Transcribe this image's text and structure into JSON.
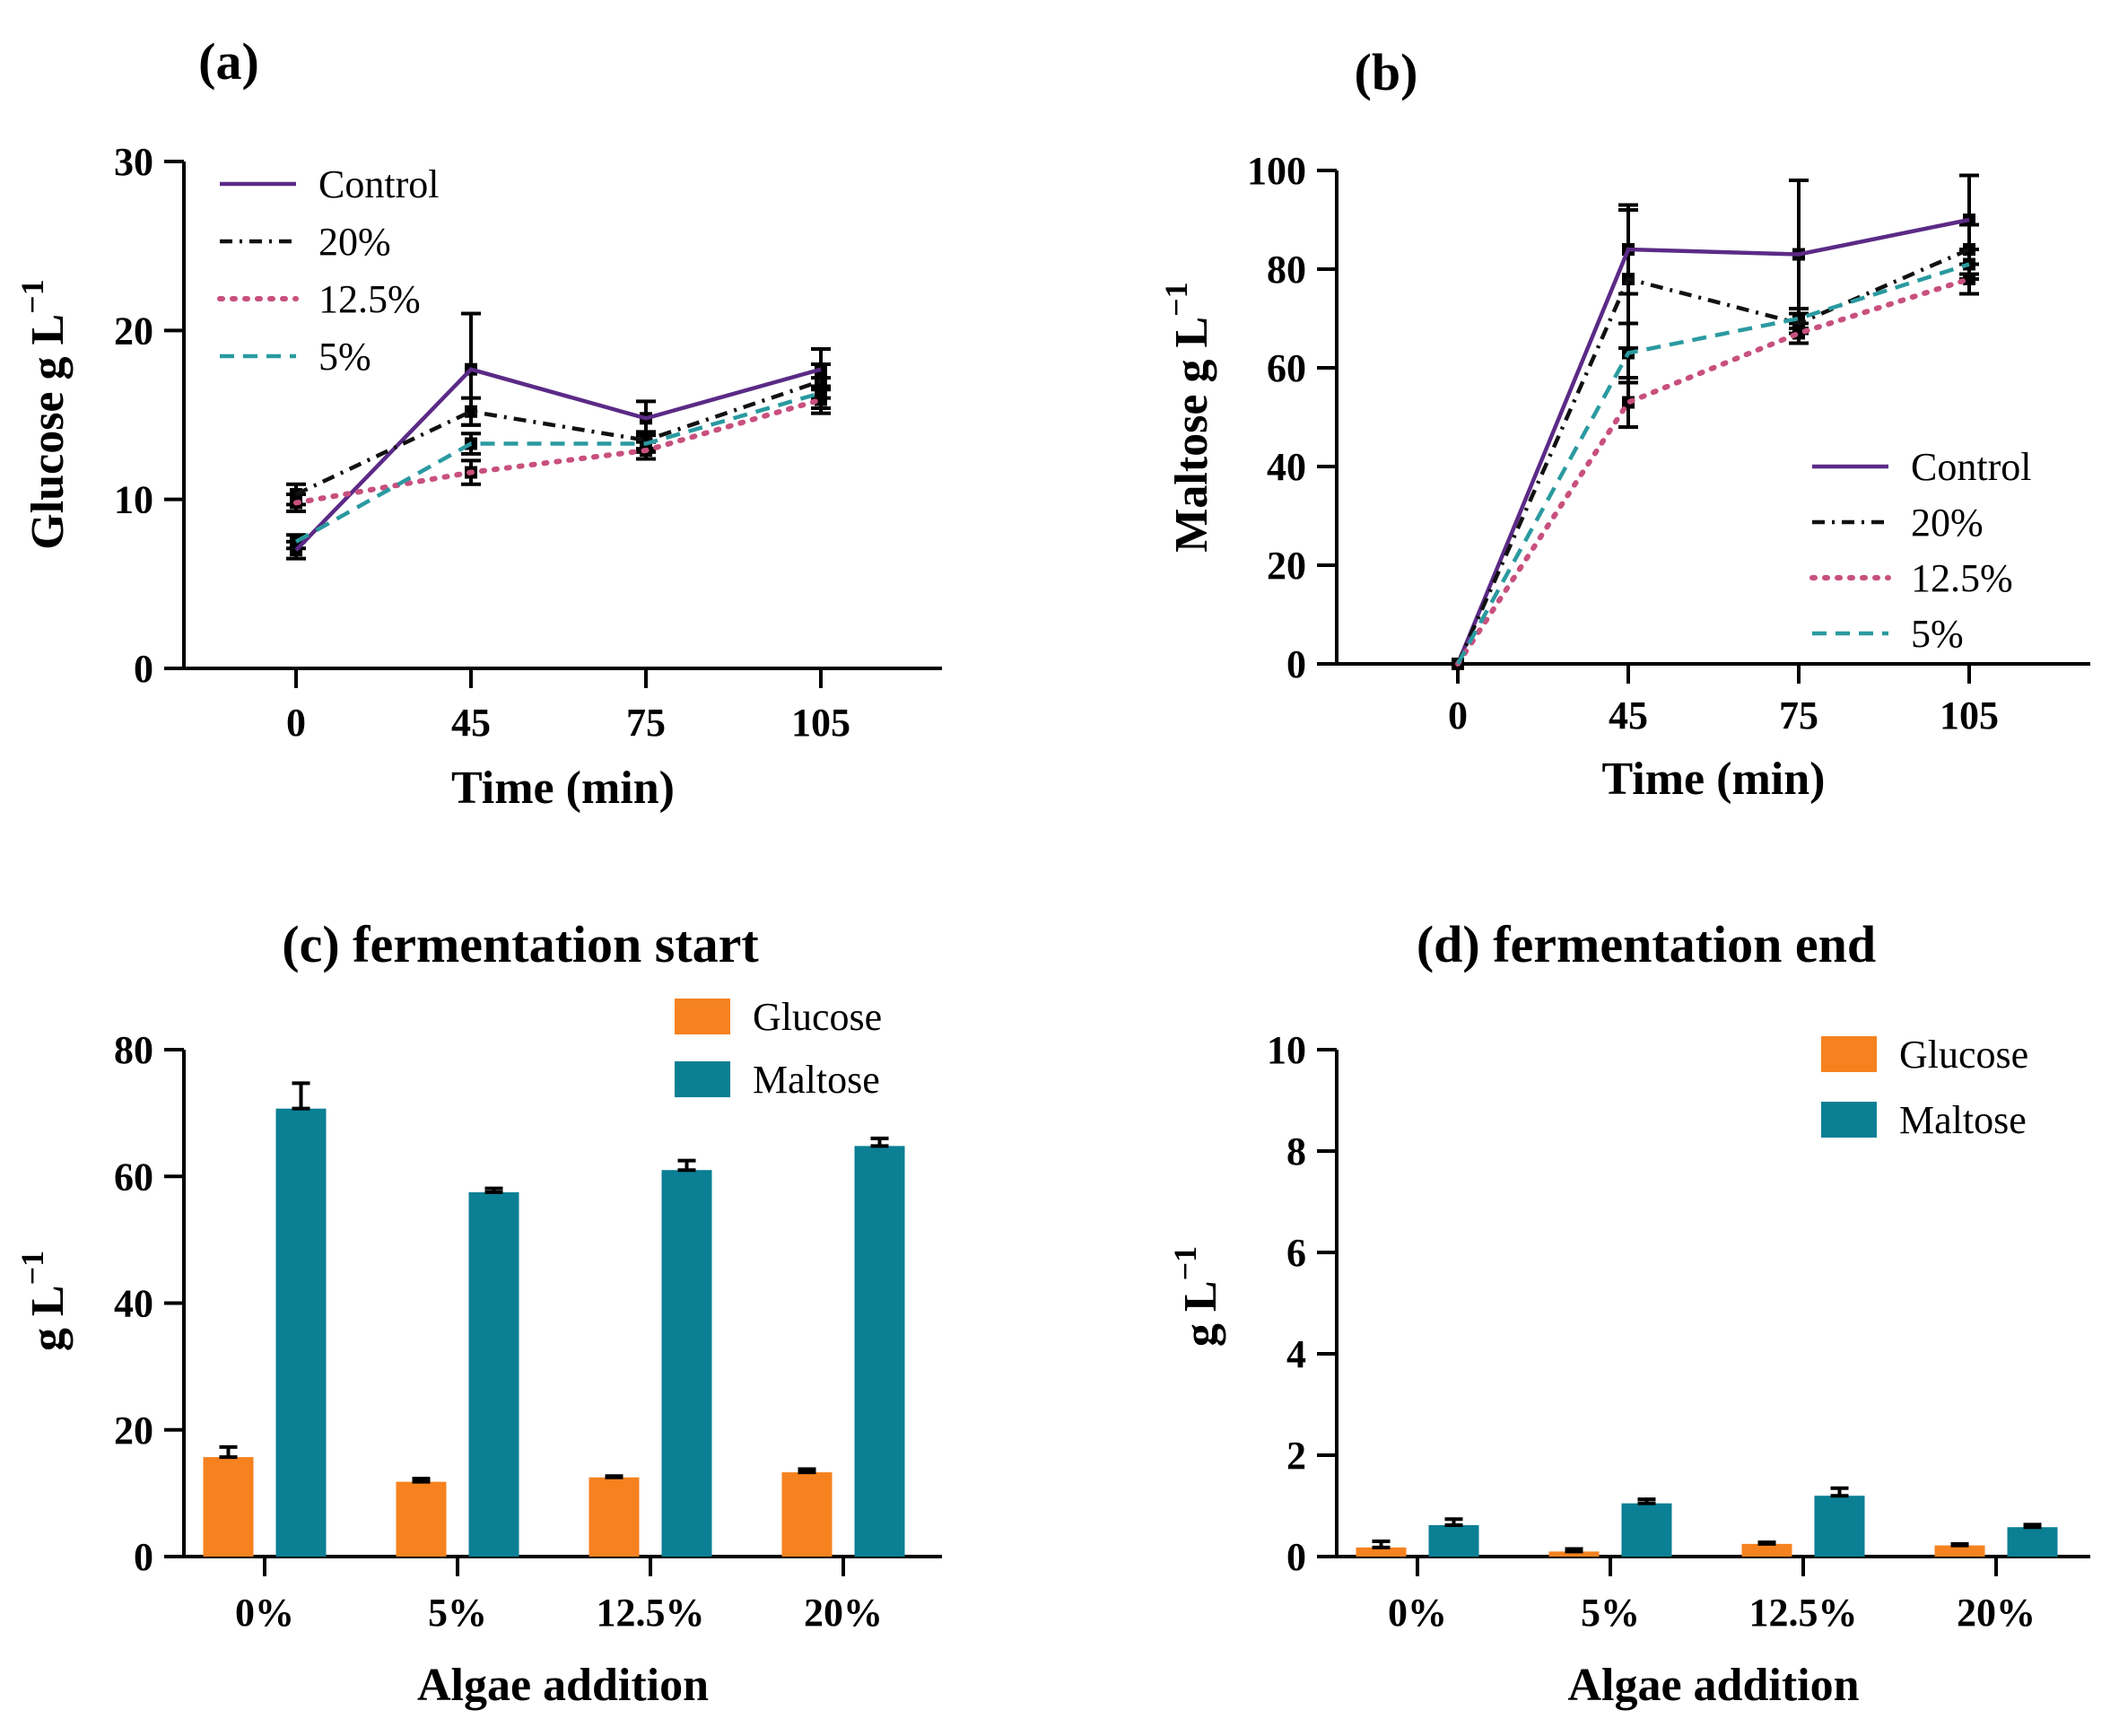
{
  "figure": {
    "panels": [
      {
        "id": "a",
        "title": "(a)"
      },
      {
        "id": "b",
        "title": "(b)"
      },
      {
        "id": "c",
        "title": "(c) fermentation start"
      },
      {
        "id": "d",
        "title": "(d) fermentation end"
      }
    ]
  },
  "colors": {
    "control": "#5b2a86",
    "p20": "#111111",
    "p12_5": "#c8507e",
    "p5": "#2a9aa0",
    "glucose": "#f5821f",
    "maltose": "#0b7f94",
    "axis": "#000000"
  },
  "chart_data": [
    {
      "id": "a",
      "type": "line",
      "title": "(a)",
      "xlabel": "Time (min)",
      "ylabel": "Glucose g L",
      "ylabel_sup": "−1",
      "categories": [
        "0",
        "45",
        "75",
        "105"
      ],
      "ylim": [
        0,
        30
      ],
      "yticks": [
        "0",
        "10",
        "20",
        "30"
      ],
      "legend_position": "top-left",
      "series": [
        {
          "name": "Control",
          "key": "control",
          "style": "solid",
          "values": [
            7.0,
            17.7,
            14.8,
            17.7
          ],
          "errors": [
            0.5,
            3.3,
            1.0,
            1.2
          ]
        },
        {
          "name": "20%",
          "key": "p20",
          "style": "dashdot",
          "values": [
            10.3,
            15.2,
            13.5,
            17.0
          ],
          "errors": [
            0.6,
            0.8,
            0.5,
            1.0
          ]
        },
        {
          "name": "12.5%",
          "key": "p12_5",
          "style": "dotted",
          "values": [
            9.8,
            11.6,
            12.9,
            15.9
          ],
          "errors": [
            0.5,
            0.7,
            0.5,
            0.8
          ]
        },
        {
          "name": "5%",
          "key": "p5",
          "style": "dashed",
          "values": [
            7.5,
            13.3,
            13.3,
            16.3
          ],
          "errors": [
            0.4,
            0.6,
            0.5,
            0.9
          ]
        }
      ]
    },
    {
      "id": "b",
      "type": "line",
      "title": "(b)",
      "xlabel": "Time (min)",
      "ylabel": "Maltose g L",
      "ylabel_sup": "−1",
      "categories": [
        "0",
        "45",
        "75",
        "105"
      ],
      "ylim": [
        0,
        100
      ],
      "yticks": [
        "0",
        "20",
        "40",
        "60",
        "80",
        "100"
      ],
      "legend_position": "bottom-right",
      "series": [
        {
          "name": "Control",
          "key": "control",
          "style": "solid",
          "values": [
            0,
            84,
            83,
            90
          ],
          "errors": [
            0,
            9,
            15,
            9
          ]
        },
        {
          "name": "20%",
          "key": "p20",
          "style": "dashdot",
          "values": [
            0,
            78,
            69,
            84
          ],
          "errors": [
            0,
            14,
            2,
            5
          ]
        },
        {
          "name": "12.5%",
          "key": "p12_5",
          "style": "dotted",
          "values": [
            0,
            53,
            67,
            78
          ],
          "errors": [
            0,
            5,
            2,
            3
          ]
        },
        {
          "name": "5%",
          "key": "p5",
          "style": "dashed",
          "values": [
            0,
            63,
            70,
            81
          ],
          "errors": [
            0,
            6,
            2,
            3
          ]
        }
      ]
    },
    {
      "id": "c",
      "type": "bar",
      "title": "(c) fermentation start",
      "xlabel": "Algae addition",
      "ylabel": "g L",
      "ylabel_sup": "−1",
      "categories": [
        "0%",
        "5%",
        "12.5%",
        "20%"
      ],
      "ylim": [
        0,
        80
      ],
      "yticks": [
        "0",
        "20",
        "40",
        "60",
        "80"
      ],
      "legend_position": "top-right",
      "series": [
        {
          "name": "Glucose",
          "key": "glucose",
          "values": [
            15.7,
            11.8,
            12.5,
            13.3
          ],
          "errors": [
            1.6,
            0.5,
            0.2,
            0.5
          ]
        },
        {
          "name": "Maltose",
          "key": "maltose",
          "values": [
            70.7,
            57.5,
            61.0,
            64.8
          ],
          "errors": [
            4.0,
            0.6,
            1.5,
            1.2
          ]
        }
      ]
    },
    {
      "id": "d",
      "type": "bar",
      "title": "(d) fermentation end",
      "xlabel": "Algae addition",
      "ylabel": "g L",
      "ylabel_sup": "−1",
      "categories": [
        "0%",
        "5%",
        "12.5%",
        "20%"
      ],
      "ylim": [
        0,
        10
      ],
      "yticks": [
        "0",
        "2",
        "4",
        "6",
        "8",
        "10"
      ],
      "legend_position": "top-right",
      "series": [
        {
          "name": "Glucose",
          "key": "glucose",
          "values": [
            0.18,
            0.1,
            0.25,
            0.22
          ],
          "errors": [
            0.12,
            0.05,
            0.03,
            0.03
          ]
        },
        {
          "name": "Maltose",
          "key": "maltose",
          "values": [
            0.62,
            1.05,
            1.2,
            0.58
          ],
          "errors": [
            0.12,
            0.08,
            0.15,
            0.05
          ]
        }
      ]
    }
  ]
}
